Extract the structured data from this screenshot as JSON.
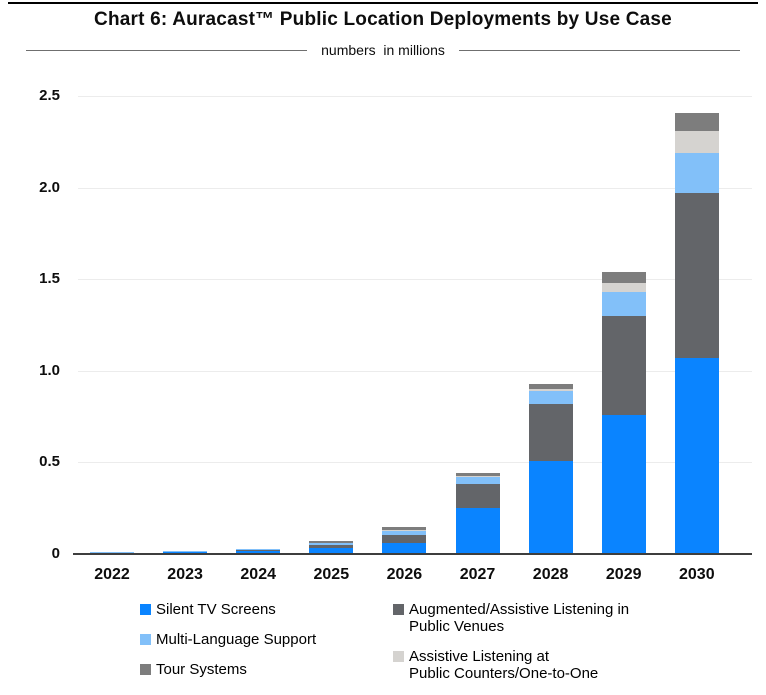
{
  "title": "Chart 6: Auracast™ Public Location Deployments by Use Case",
  "subtitle": "numbers  in millions",
  "colors": {
    "silent_tv": "#0a84ff",
    "multi_language": "#82c0f9",
    "tour_systems": "#7d7d7d",
    "augmented_venues": "#636569",
    "assistive_counters": "#d5d3d0",
    "gridline": "#ececec",
    "axis_line": "#3e3e3e"
  },
  "chart_data": {
    "type": "bar",
    "stacked": true,
    "title": "Chart 6: Auracast™ Public Location Deployments by Use Case",
    "subtitle": "numbers in millions",
    "xlabel": "",
    "ylabel": "numbers in millions",
    "ylim": [
      0,
      2.5
    ],
    "yticks": [
      "0",
      "0.5",
      "1.0",
      "1.5",
      "2.0",
      "2.5"
    ],
    "grid": true,
    "legend_position": "bottom",
    "categories": [
      "2022",
      "2023",
      "2024",
      "2025",
      "2026",
      "2027",
      "2028",
      "2029",
      "2030"
    ],
    "series": [
      {
        "name": "Silent TV Screens",
        "color": "#0a84ff",
        "values": [
          0.006,
          0.009,
          0.018,
          0.035,
          0.06,
          0.25,
          0.51,
          0.76,
          1.07
        ]
      },
      {
        "name": "Augmented/Assistive Listening in Public Venues",
        "color": "#636569",
        "values": [
          0.002,
          0.003,
          0.005,
          0.015,
          0.045,
          0.13,
          0.31,
          0.54,
          0.9
        ]
      },
      {
        "name": "Multi-Language Support",
        "color": "#82c0f9",
        "values": [
          0.001,
          0.002,
          0.003,
          0.009,
          0.022,
          0.04,
          0.07,
          0.13,
          0.22
        ]
      },
      {
        "name": "Assistive Listening at Public Counters/One-to-One",
        "color": "#d5d3d0",
        "values": [
          0.0005,
          0.001,
          0.001,
          0.002,
          0.006,
          0.006,
          0.012,
          0.05,
          0.12
        ]
      },
      {
        "name": "Tour Systems",
        "color": "#7d7d7d",
        "values": [
          0.0005,
          0.001,
          0.002,
          0.009,
          0.012,
          0.016,
          0.028,
          0.06,
          0.1
        ]
      }
    ]
  },
  "legend": {
    "columns": [
      {
        "items": [
          {
            "label": "Silent TV Screens",
            "color": "#0a84ff"
          },
          {
            "label": "Multi-Language Support",
            "color": "#82c0f9"
          },
          {
            "label": "Tour Systems",
            "color": "#7d7d7d"
          }
        ]
      },
      {
        "items": [
          {
            "label": "Augmented/Assistive Listening in\nPublic Venues",
            "color": "#636569"
          },
          {
            "label": "Assistive Listening at\nPublic Counters/One-to-One",
            "color": "#d5d3d0"
          }
        ]
      }
    ]
  }
}
